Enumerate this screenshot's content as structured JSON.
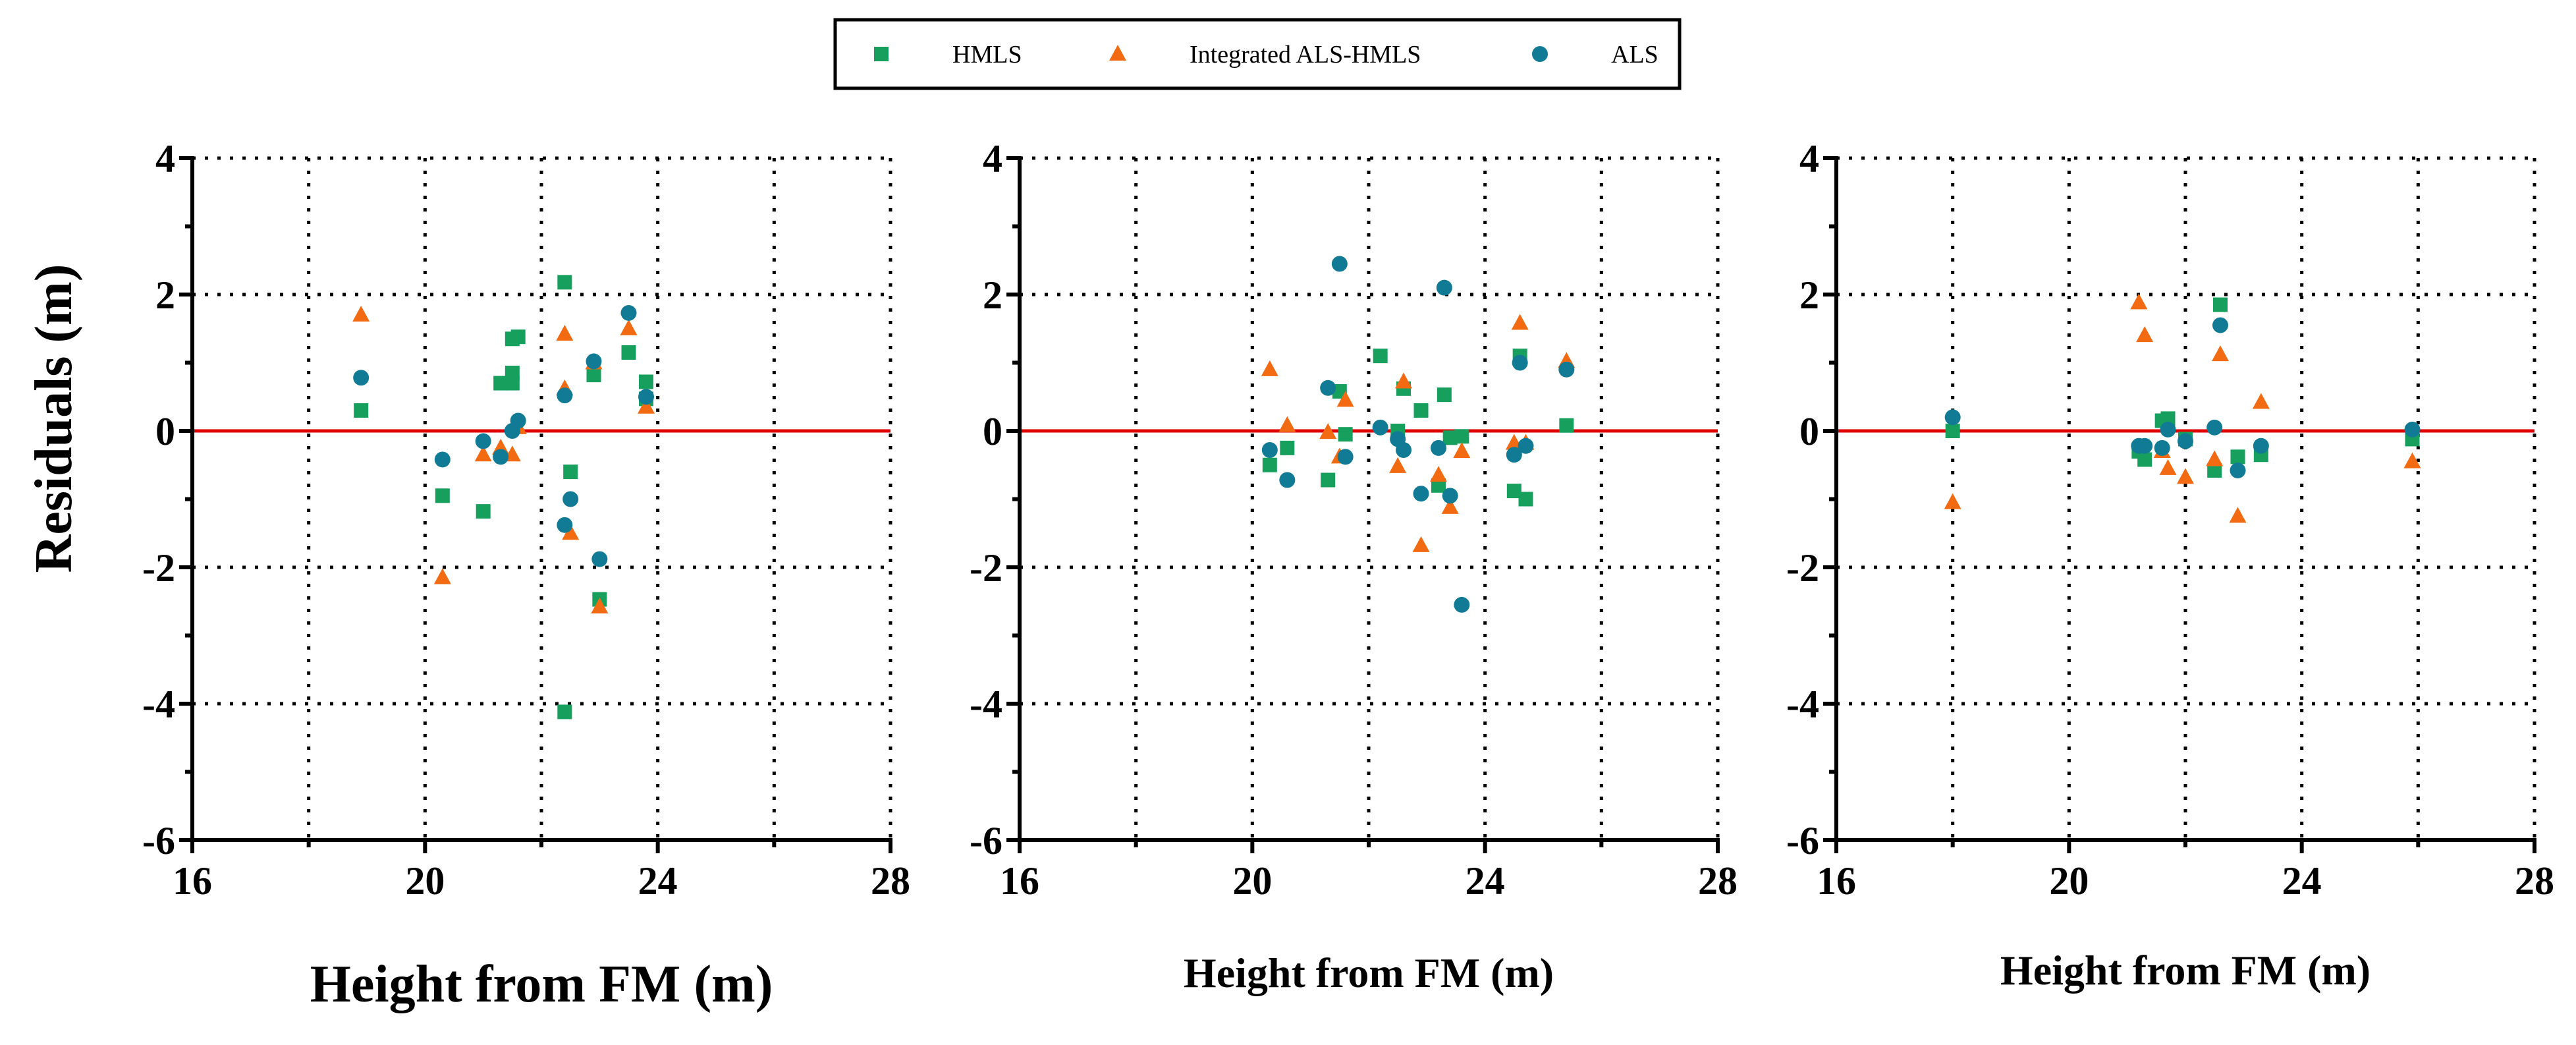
{
  "colors": {
    "HMLS": "#17a05d",
    "Integrated ALS-HMLS": "#f26b12",
    "ALS": "#117b96",
    "zero_line": "#e00000"
  },
  "legend": [
    {
      "label": "HMLS",
      "marker": "square"
    },
    {
      "label": "Integrated ALS-HMLS",
      "marker": "triangle"
    },
    {
      "label": "ALS",
      "marker": "circle"
    }
  ],
  "y_axis_title": "Residuals (m)",
  "chart_data": [
    {
      "type": "scatter",
      "title": "",
      "xlabel": "Height from FM (m)",
      "ylabel": "Residuals (m)",
      "xlim": [
        16,
        28
      ],
      "ylim": [
        -6,
        4
      ],
      "xticks": [
        16,
        20,
        24,
        28
      ],
      "yticks": [
        4,
        2,
        0,
        -2,
        -4,
        -6
      ],
      "grid": true,
      "series": [
        {
          "name": "HMLS",
          "points": [
            [
              18.9,
              0.3
            ],
            [
              20.3,
              -0.95
            ],
            [
              21.0,
              -1.18
            ],
            [
              21.3,
              0.7
            ],
            [
              21.5,
              0.85
            ],
            [
              21.5,
              1.35
            ],
            [
              21.6,
              1.38
            ],
            [
              21.5,
              0.7
            ],
            [
              22.4,
              2.18
            ],
            [
              22.5,
              -0.6
            ],
            [
              22.4,
              -4.12
            ],
            [
              22.9,
              0.82
            ],
            [
              23.0,
              -2.47
            ],
            [
              23.5,
              1.15
            ],
            [
              23.8,
              0.72
            ],
            [
              23.8,
              0.47
            ]
          ]
        },
        {
          "name": "Integrated ALS-HMLS",
          "points": [
            [
              18.9,
              1.7
            ],
            [
              20.3,
              -2.15
            ],
            [
              21.0,
              -0.35
            ],
            [
              21.3,
              -0.25
            ],
            [
              21.5,
              -0.35
            ],
            [
              21.6,
              0.05
            ],
            [
              22.4,
              0.62
            ],
            [
              22.4,
              1.42
            ],
            [
              22.5,
              -1.5
            ],
            [
              22.9,
              1.0
            ],
            [
              23.0,
              -2.58
            ],
            [
              23.5,
              1.5
            ],
            [
              23.8,
              0.35
            ]
          ]
        },
        {
          "name": "ALS",
          "points": [
            [
              18.9,
              0.78
            ],
            [
              20.3,
              -0.42
            ],
            [
              21.0,
              -0.15
            ],
            [
              21.3,
              -0.38
            ],
            [
              21.5,
              0.0
            ],
            [
              21.6,
              0.15
            ],
            [
              22.4,
              0.52
            ],
            [
              22.4,
              -1.38
            ],
            [
              22.5,
              -1.0
            ],
            [
              22.9,
              1.02
            ],
            [
              23.0,
              -1.88
            ],
            [
              23.5,
              1.73
            ],
            [
              23.8,
              0.5
            ]
          ]
        }
      ]
    },
    {
      "type": "scatter",
      "title": "",
      "xlabel": "Height from FM (m)",
      "ylabel": "",
      "xlim": [
        16,
        28
      ],
      "ylim": [
        -6,
        4
      ],
      "xticks": [
        16,
        20,
        24,
        28
      ],
      "yticks": [
        4,
        2,
        0,
        -2,
        -4,
        -6
      ],
      "grid": true,
      "series": [
        {
          "name": "HMLS",
          "points": [
            [
              20.3,
              -0.5
            ],
            [
              20.6,
              -0.25
            ],
            [
              21.3,
              -0.72
            ],
            [
              21.5,
              0.58
            ],
            [
              21.6,
              -0.05
            ],
            [
              22.2,
              1.1
            ],
            [
              22.5,
              0.0
            ],
            [
              22.6,
              0.62
            ],
            [
              22.9,
              0.3
            ],
            [
              23.2,
              -0.8
            ],
            [
              23.3,
              0.53
            ],
            [
              23.4,
              -0.1
            ],
            [
              23.6,
              -0.08
            ],
            [
              24.5,
              -0.88
            ],
            [
              24.6,
              1.1
            ],
            [
              24.7,
              -1.0
            ],
            [
              25.4,
              0.08
            ]
          ]
        },
        {
          "name": "Integrated ALS-HMLS",
          "points": [
            [
              20.3,
              0.9
            ],
            [
              20.6,
              0.08
            ],
            [
              21.3,
              -0.02
            ],
            [
              21.5,
              -0.38
            ],
            [
              21.6,
              0.45
            ],
            [
              22.5,
              -0.52
            ],
            [
              22.6,
              0.72
            ],
            [
              22.9,
              -1.68
            ],
            [
              23.2,
              -0.65
            ],
            [
              23.4,
              -1.12
            ],
            [
              23.6,
              -0.3
            ],
            [
              24.5,
              -0.18
            ],
            [
              24.6,
              1.58
            ],
            [
              24.7,
              -0.18
            ],
            [
              25.4,
              1.02
            ]
          ]
        },
        {
          "name": "ALS",
          "points": [
            [
              20.3,
              -0.28
            ],
            [
              20.6,
              -0.72
            ],
            [
              21.3,
              0.63
            ],
            [
              21.5,
              2.45
            ],
            [
              21.6,
              -0.38
            ],
            [
              22.2,
              0.05
            ],
            [
              22.5,
              -0.12
            ],
            [
              22.6,
              -0.28
            ],
            [
              22.9,
              -0.92
            ],
            [
              23.2,
              -0.25
            ],
            [
              23.3,
              2.1
            ],
            [
              23.4,
              -0.95
            ],
            [
              23.6,
              -2.55
            ],
            [
              24.5,
              -0.35
            ],
            [
              24.6,
              1.0
            ],
            [
              24.7,
              -0.22
            ],
            [
              25.4,
              0.9
            ]
          ]
        }
      ]
    },
    {
      "type": "scatter",
      "title": "",
      "xlabel": "Height from FM (m)",
      "ylabel": "",
      "xlim": [
        16,
        28
      ],
      "ylim": [
        -6,
        4
      ],
      "xticks": [
        16,
        20,
        24,
        28
      ],
      "yticks": [
        4,
        2,
        0,
        -2,
        -4,
        -6
      ],
      "grid": true,
      "series": [
        {
          "name": "HMLS",
          "points": [
            [
              18.0,
              0.0
            ],
            [
              21.2,
              -0.3
            ],
            [
              21.3,
              -0.42
            ],
            [
              21.6,
              0.15
            ],
            [
              21.7,
              0.18
            ],
            [
              22.0,
              -0.12
            ],
            [
              22.5,
              -0.58
            ],
            [
              22.6,
              1.85
            ],
            [
              22.9,
              -0.38
            ],
            [
              23.3,
              -0.35
            ],
            [
              25.9,
              -0.12
            ]
          ]
        },
        {
          "name": "Integrated ALS-HMLS",
          "points": [
            [
              18.0,
              -1.05
            ],
            [
              21.2,
              1.88
            ],
            [
              21.3,
              1.4
            ],
            [
              21.6,
              -0.3
            ],
            [
              21.7,
              -0.55
            ],
            [
              22.0,
              -0.68
            ],
            [
              22.5,
              -0.42
            ],
            [
              22.6,
              1.12
            ],
            [
              22.9,
              -1.25
            ],
            [
              23.3,
              0.42
            ],
            [
              25.9,
              -0.45
            ]
          ]
        },
        {
          "name": "ALS",
          "points": [
            [
              18.0,
              0.2
            ],
            [
              21.2,
              -0.22
            ],
            [
              21.3,
              -0.22
            ],
            [
              21.6,
              -0.25
            ],
            [
              21.7,
              0.02
            ],
            [
              22.0,
              -0.15
            ],
            [
              22.5,
              0.05
            ],
            [
              22.6,
              1.55
            ],
            [
              22.9,
              -0.58
            ],
            [
              23.3,
              -0.22
            ],
            [
              25.9,
              0.02
            ]
          ]
        }
      ]
    }
  ]
}
